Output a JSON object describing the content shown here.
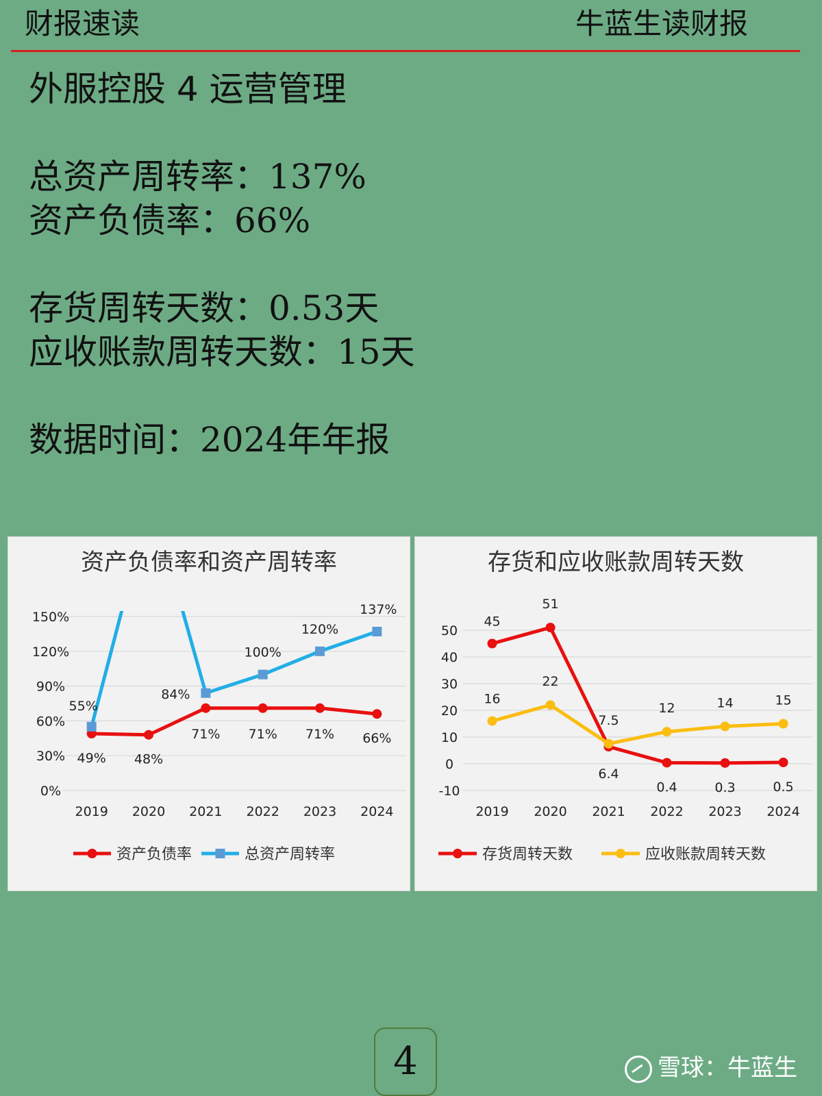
{
  "header": {
    "left": "财报速读",
    "right": "牛蓝生读财报"
  },
  "content": {
    "title": "外服控股 4 运营管理",
    "total_asset_turnover_label": "总资产周转率：",
    "total_asset_turnover_value": "137%",
    "debt_ratio_label": "资产负债率：",
    "debt_ratio_value": "66%",
    "inventory_days_label": "存货周转天数：",
    "inventory_days_value": "0.53",
    "inventory_days_unit": "天",
    "receivable_days_label": "应收账款周转天数：",
    "receivable_days_value": "15",
    "receivable_days_unit": "天",
    "data_time_label": "数据时间：",
    "data_time_value": "2024",
    "data_time_unit": "年年报"
  },
  "footer": {
    "page_number": "4",
    "watermark": "雪球：牛蓝生"
  },
  "colors": {
    "background": "#6dab85",
    "red": "#e81010",
    "blue": "#22aee6",
    "yellow": "#fbbd12",
    "rule": "#d42020"
  },
  "chart_data": [
    {
      "type": "line",
      "title": "资产负债率和资产周转率",
      "categories": [
        "2019",
        "2020",
        "2021",
        "2022",
        "2023",
        "2024"
      ],
      "ylim": [
        0,
        150
      ],
      "yticks": [
        "0%",
        "30%",
        "60%",
        "90%",
        "120%",
        "150%"
      ],
      "grid": true,
      "legend": "bottom",
      "series": [
        {
          "name": "资产负债率",
          "color": "#e81010",
          "marker": "circle",
          "values": [
            49,
            48,
            71,
            71,
            71,
            66
          ],
          "labels": [
            "49%",
            "48%",
            "71%",
            "71%",
            "71%",
            "66%"
          ]
        },
        {
          "name": "总资产周转率",
          "color": "#22aee6",
          "marker": "square",
          "values": [
            55,
            null,
            84,
            100,
            120,
            137
          ],
          "labels": [
            "55%",
            "",
            "84%",
            "100%",
            "120%",
            "137%"
          ]
        }
      ]
    },
    {
      "type": "line",
      "title": "存货和应收账款周转天数",
      "categories": [
        "2019",
        "2020",
        "2021",
        "2022",
        "2023",
        "2024"
      ],
      "ylim": [
        -10,
        50
      ],
      "yticks": [
        "-10",
        "0",
        "10",
        "20",
        "30",
        "40",
        "50"
      ],
      "grid": true,
      "legend": "bottom",
      "series": [
        {
          "name": "存货周转天数",
          "color": "#e81010",
          "marker": "circle",
          "values": [
            45,
            51,
            6.4,
            0.4,
            0.3,
            0.5
          ],
          "labels": [
            "45",
            "51",
            "6.4",
            "0.4",
            "0.3",
            "0.5"
          ]
        },
        {
          "name": "应收账款周转天数",
          "color": "#fbbd12",
          "marker": "circle",
          "values": [
            16,
            22,
            7.5,
            12,
            14,
            15
          ],
          "labels": [
            "16",
            "22",
            "7.5",
            "12",
            "14",
            "15"
          ]
        }
      ]
    }
  ]
}
